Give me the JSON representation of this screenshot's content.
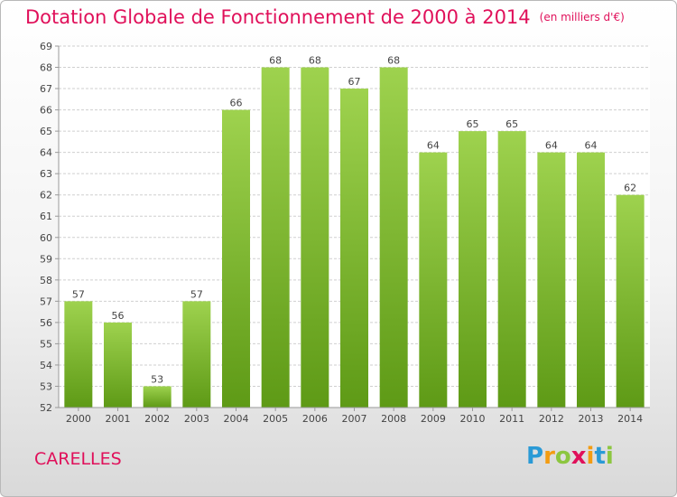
{
  "title": "Dotation Globale de Fonctionnement de 2000 à 2014",
  "unit_note": "(en milliers d'€)",
  "location": "CARELLES",
  "logo": {
    "letters": [
      "P",
      "r",
      "o",
      "x",
      "i",
      "t",
      "i"
    ],
    "colors": [
      "#2a9ad6",
      "#f39c12",
      "#8cc63f",
      "#e0105a",
      "#f39c12",
      "#2a9ad6",
      "#8cc63f"
    ]
  },
  "colors": {
    "accent": "#e0105a",
    "bar_top": "#9ed24e",
    "bar_bottom": "#5e9a16",
    "grid": "#cfcfcf"
  },
  "chart_data": {
    "type": "bar",
    "categories": [
      "2000",
      "2001",
      "2002",
      "2003",
      "2004",
      "2005",
      "2006",
      "2007",
      "2008",
      "2009",
      "2010",
      "2011",
      "2012",
      "2013",
      "2014"
    ],
    "values": [
      57,
      56,
      53,
      57,
      66,
      68,
      68,
      67,
      68,
      64,
      65,
      65,
      64,
      64,
      62
    ],
    "ylim": [
      52,
      69
    ],
    "yticks": [
      "52",
      "53",
      "54",
      "55",
      "56",
      "57",
      "58",
      "59",
      "60",
      "61",
      "62",
      "63",
      "64",
      "65",
      "66",
      "67",
      "68",
      "69"
    ],
    "grid": true,
    "data_labels": true
  }
}
